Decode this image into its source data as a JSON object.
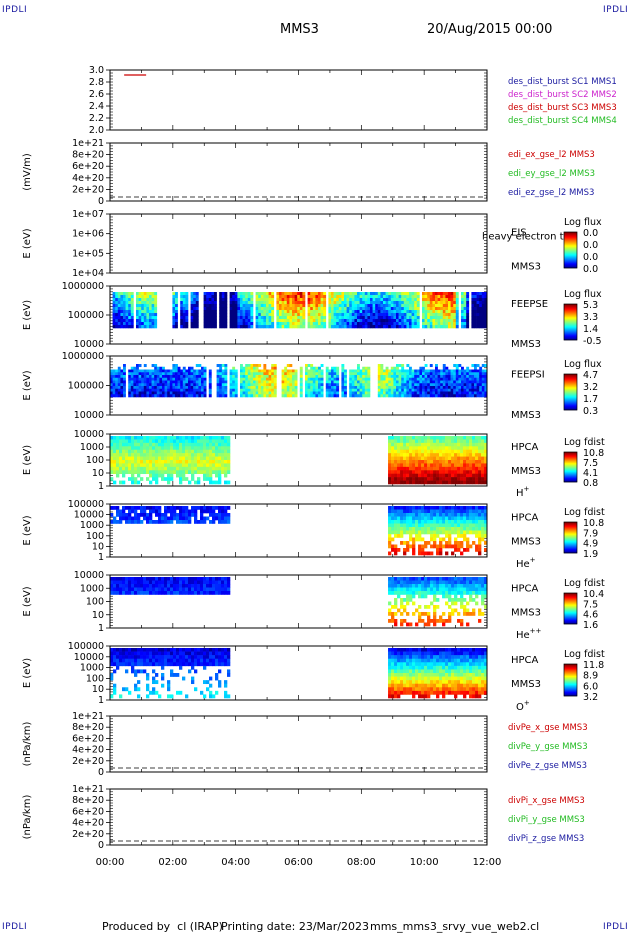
{
  "header": {
    "corner_label": "IPDLI",
    "spacecraft": "MMS3",
    "datetime": "20/Aug/2015 00:00"
  },
  "footer": {
    "produced_by": "Produced by  cl (IRAP)",
    "printing_date": "Printing date: 23/Mar/2023",
    "script": "mms_mms3_srvy_vue_web2.cl"
  },
  "x_axis": {
    "tick_labels": [
      "00:00",
      "02:00",
      "04:00",
      "06:00",
      "08:00",
      "10:00",
      "12:00"
    ],
    "range_hours": [
      0,
      12
    ]
  },
  "panels": [
    {
      "id": "burst",
      "ylabel": "",
      "ytick_labels": [
        "3.0",
        "2.8",
        "2.6",
        "2.4",
        "2.2",
        "2.0"
      ],
      "legend": [
        {
          "text": "des_dist_burst SC1 MMS1",
          "color": "#1a1aa0"
        },
        {
          "text": "des_dist_burst SC2 MMS2",
          "color": "#cc22cc"
        },
        {
          "text": "des_dist_burst SC3 MMS3",
          "color": "#cc0000"
        },
        {
          "text": "des_dist_burst SC4 MMS4",
          "color": "#22bb22"
        }
      ]
    },
    {
      "id": "edi",
      "ylabel": "(mV/m)",
      "ytick_labels": [
        "1e+21",
        "8e+20",
        "6e+20",
        "4e+20",
        "2e+20",
        "0"
      ],
      "legend": [
        {
          "text": "edi_ex_gse_l2 MMS3",
          "color": "#cc0000"
        },
        {
          "text": "edi_ey_gse_l2 MMS3",
          "color": "#22bb22"
        },
        {
          "text": "edi_ez_gse_l2 MMS3",
          "color": "#1a1aa0"
        }
      ]
    },
    {
      "id": "eis",
      "ylabel": "E (eV)",
      "ytick_labels": [
        "1e+07",
        "1e+06",
        "1e+05",
        "1e+04"
      ],
      "instrument": [
        "EIS",
        "heavy electron to",
        "MMS3"
      ],
      "colorbar_title": "Log flux",
      "colorbar_ticks": [
        "0.0",
        "0.0",
        "0.0",
        "0.0"
      ]
    },
    {
      "id": "feepse",
      "ylabel": "E (eV)",
      "ytick_labels": [
        "1000000",
        "100000",
        "10000"
      ],
      "instrument": [
        "FEEPSE",
        "MMS3"
      ],
      "colorbar_title": "Log flux",
      "colorbar_ticks": [
        "5.3",
        "3.3",
        "1.4",
        "-0.5"
      ]
    },
    {
      "id": "feepsi",
      "ylabel": "E (eV)",
      "ytick_labels": [
        "1000000",
        "100000",
        "10000"
      ],
      "instrument": [
        "FEEPSI",
        "MMS3"
      ],
      "colorbar_title": "Log flux",
      "colorbar_ticks": [
        "4.7",
        "3.2",
        "1.7",
        "0.3"
      ]
    },
    {
      "id": "hpca_h",
      "ylabel": "E (eV)",
      "ytick_labels": [
        "10000",
        "1000",
        "100",
        "10",
        "1"
      ],
      "instrument": [
        "HPCA",
        "MMS3"
      ],
      "species": "H",
      "species_sup": "+",
      "colorbar_title": "Log fdist",
      "colorbar_ticks": [
        "10.8",
        "7.5",
        "4.1",
        "0.8"
      ]
    },
    {
      "id": "hpca_he",
      "ylabel": "E (eV)",
      "ytick_labels": [
        "100000",
        "10000",
        "1000",
        "100",
        "10",
        "1"
      ],
      "instrument": [
        "HPCA",
        "MMS3"
      ],
      "species": "He",
      "species_sup": "+",
      "colorbar_title": "Log fdist",
      "colorbar_ticks": [
        "10.8",
        "7.9",
        "4.9",
        "1.9"
      ]
    },
    {
      "id": "hpca_hepp",
      "ylabel": "E (eV)",
      "ytick_labels": [
        "10000",
        "1000",
        "100",
        "10",
        "1"
      ],
      "instrument": [
        "HPCA",
        "MMS3"
      ],
      "species": "He",
      "species_sup": "++",
      "colorbar_title": "Log fdist",
      "colorbar_ticks": [
        "10.4",
        "7.5",
        "4.6",
        "1.6"
      ]
    },
    {
      "id": "hpca_o",
      "ylabel": "E (eV)",
      "ytick_labels": [
        "100000",
        "10000",
        "1000",
        "100",
        "10",
        "1"
      ],
      "instrument": [
        "HPCA",
        "MMS3"
      ],
      "species": "O",
      "species_sup": "+",
      "colorbar_title": "Log fdist",
      "colorbar_ticks": [
        "11.8",
        "8.9",
        "6.0",
        "3.2"
      ]
    },
    {
      "id": "divpe",
      "ylabel": "(nPa/km)",
      "ytick_labels": [
        "1e+21",
        "8e+20",
        "6e+20",
        "4e+20",
        "2e+20",
        "0"
      ],
      "legend": [
        {
          "text": "divPe_x_gse MMS3",
          "color": "#cc0000"
        },
        {
          "text": "divPe_y_gse MMS3",
          "color": "#22bb22"
        },
        {
          "text": "divPe_z_gse MMS3",
          "color": "#1a1aa0"
        }
      ]
    },
    {
      "id": "divpi",
      "ylabel": "(nPa/km)",
      "ytick_labels": [
        "1e+21",
        "8e+20",
        "6e+20",
        "4e+20",
        "2e+20",
        "0"
      ],
      "legend": [
        {
          "text": "divPi_x_gse MMS3",
          "color": "#cc0000"
        },
        {
          "text": "divPi_y_gse MMS3",
          "color": "#22bb22"
        },
        {
          "text": "divPi_z_gse MMS3",
          "color": "#1a1aa0"
        }
      ]
    }
  ],
  "chart_data": {
    "type": "heatmap",
    "time_unit": "hours since 2015-08-20 00:00",
    "burst_intervals": [
      {
        "spacecraft": "MMS3",
        "start_h": 0.45,
        "end_h": 1.15,
        "value": 3.0,
        "color": "#cc0000"
      }
    ],
    "hpca_coverage_h": [
      [
        0.0,
        3.75
      ],
      [
        8.85,
        12.0
      ]
    ],
    "feeps_coverage_h": [
      [
        0.0,
        12.0
      ]
    ]
  }
}
